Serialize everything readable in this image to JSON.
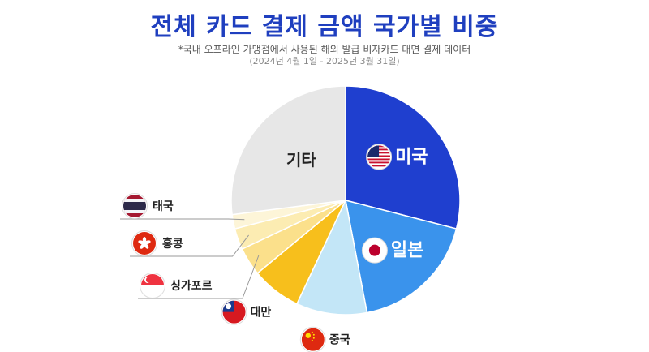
{
  "header": {
    "title": "전체 카드 결제 금액 국가별 비중",
    "subtitle": "*국내 오프라인 가맹점에서 사용된 해외 발급 비자카드 대면 결제 데이터",
    "period": "(2024년 4월 1일 - 2025년 3월 31일)"
  },
  "chart_data": {
    "type": "pie",
    "title": "전체 카드 결제 금액 국가별 비중",
    "unit": "%",
    "slices": [
      {
        "label": "미국",
        "value": 29.0,
        "color": "#1f3fcf",
        "flag": "us-flag-icon"
      },
      {
        "label": "일본",
        "value": 18.0,
        "color": "#3a93ec",
        "flag": "japan-flag-icon"
      },
      {
        "label": "중국",
        "value": 10.0,
        "color": "#c3e6f7",
        "flag": "china-flag-icon"
      },
      {
        "label": "대만",
        "value": 7.0,
        "color": "#f7bf1c",
        "flag": "taiwan-flag-icon"
      },
      {
        "label": "싱가포르",
        "value": 4.0,
        "color": "#fbe08b",
        "flag": "singapore-flag-icon"
      },
      {
        "label": "홍콩",
        "value": 3.0,
        "color": "#fcecb2",
        "flag": "hongkong-flag-icon"
      },
      {
        "label": "태국",
        "value": 2.0,
        "color": "#fdf5d8",
        "flag": "thailand-flag-icon"
      },
      {
        "label": "기타",
        "value": 27.0,
        "color": "#e7e7e7",
        "flag": ""
      }
    ]
  }
}
